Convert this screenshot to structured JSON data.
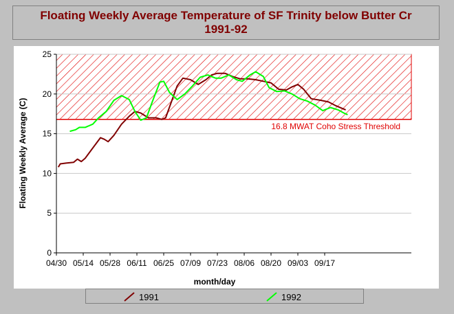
{
  "chart_data": {
    "type": "line",
    "title": "Floating Weekly Average Temperature of SF Trinity below Butter Cr 1991-92",
    "xlabel": "month/day",
    "ylabel": "Floating Weekly Average (C)",
    "ylim": [
      0,
      25
    ],
    "yticks": [
      0,
      5,
      10,
      15,
      20,
      25
    ],
    "x_axis_origin": "04/30",
    "xticks": [
      "04/30",
      "05/14",
      "05/28",
      "06/11",
      "06/25",
      "07/09",
      "07/23",
      "08/06",
      "08/20",
      "09/03",
      "09/17"
    ],
    "grid": true,
    "legend_placement": "bottom",
    "threshold": {
      "value": 16.8,
      "label": "16.8 MWAT Coho Stress Threshold",
      "band_top": 25,
      "color": "#e00000"
    },
    "series": [
      {
        "name": "1991",
        "color": "#800000",
        "points": [
          [
            "05/01",
            10.8
          ],
          [
            "05/02",
            11.2
          ],
          [
            "05/05",
            11.3
          ],
          [
            "05/09",
            11.4
          ],
          [
            "05/11",
            11.8
          ],
          [
            "05/13",
            11.5
          ],
          [
            "05/15",
            11.9
          ],
          [
            "05/19",
            13.2
          ],
          [
            "05/23",
            14.5
          ],
          [
            "05/25",
            14.3
          ],
          [
            "05/27",
            14.0
          ],
          [
            "05/30",
            14.8
          ],
          [
            "06/03",
            16.2
          ],
          [
            "06/07",
            17.2
          ],
          [
            "06/10",
            17.8
          ],
          [
            "06/13",
            17.6
          ],
          [
            "06/17",
            17.0
          ],
          [
            "06/21",
            17.0
          ],
          [
            "06/24",
            16.8
          ],
          [
            "06/26",
            17.0
          ],
          [
            "06/29",
            19.0
          ],
          [
            "07/02",
            21.0
          ],
          [
            "07/05",
            22.0
          ],
          [
            "07/09",
            21.8
          ],
          [
            "07/13",
            21.2
          ],
          [
            "07/17",
            21.8
          ],
          [
            "07/20",
            22.4
          ],
          [
            "07/23",
            22.6
          ],
          [
            "07/27",
            22.6
          ],
          [
            "07/31",
            22.2
          ],
          [
            "08/04",
            21.9
          ],
          [
            "08/08",
            21.9
          ],
          [
            "08/12",
            21.8
          ],
          [
            "08/16",
            21.6
          ],
          [
            "08/20",
            21.4
          ],
          [
            "08/24",
            20.6
          ],
          [
            "08/28",
            20.5
          ],
          [
            "08/31",
            20.9
          ],
          [
            "09/03",
            21.2
          ],
          [
            "09/06",
            20.6
          ],
          [
            "09/10",
            19.4
          ],
          [
            "09/15",
            19.2
          ],
          [
            "09/19",
            19.0
          ],
          [
            "09/23",
            18.5
          ],
          [
            "09/27",
            18.1
          ],
          [
            "09/28",
            18.0
          ]
        ]
      },
      {
        "name": "1992",
        "color": "#00ff00",
        "points": [
          [
            "05/07",
            15.3
          ],
          [
            "05/10",
            15.5
          ],
          [
            "05/12",
            15.8
          ],
          [
            "05/15",
            15.8
          ],
          [
            "05/19",
            16.2
          ],
          [
            "05/22",
            17.0
          ],
          [
            "05/26",
            17.8
          ],
          [
            "05/30",
            19.2
          ],
          [
            "06/03",
            19.8
          ],
          [
            "06/07",
            19.3
          ],
          [
            "06/10",
            17.8
          ],
          [
            "06/13",
            16.7
          ],
          [
            "06/16",
            17.0
          ],
          [
            "06/19",
            19.0
          ],
          [
            "06/23",
            21.5
          ],
          [
            "06/25",
            21.6
          ],
          [
            "06/28",
            20.2
          ],
          [
            "07/02",
            19.3
          ],
          [
            "07/06",
            20.0
          ],
          [
            "07/10",
            21.0
          ],
          [
            "07/14",
            22.1
          ],
          [
            "07/18",
            22.4
          ],
          [
            "07/22",
            22.0
          ],
          [
            "07/25",
            22.0
          ],
          [
            "07/29",
            22.4
          ],
          [
            "08/02",
            21.8
          ],
          [
            "08/05",
            21.6
          ],
          [
            "08/09",
            22.4
          ],
          [
            "08/12",
            22.8
          ],
          [
            "08/16",
            22.2
          ],
          [
            "08/19",
            20.8
          ],
          [
            "08/23",
            20.3
          ],
          [
            "08/27",
            20.4
          ],
          [
            "08/31",
            20.0
          ],
          [
            "09/04",
            19.4
          ],
          [
            "09/08",
            19.1
          ],
          [
            "09/12",
            18.6
          ],
          [
            "09/16",
            17.9
          ],
          [
            "09/20",
            18.3
          ],
          [
            "09/24",
            18.0
          ],
          [
            "09/27",
            17.6
          ],
          [
            "09/29",
            17.4
          ]
        ]
      }
    ]
  }
}
